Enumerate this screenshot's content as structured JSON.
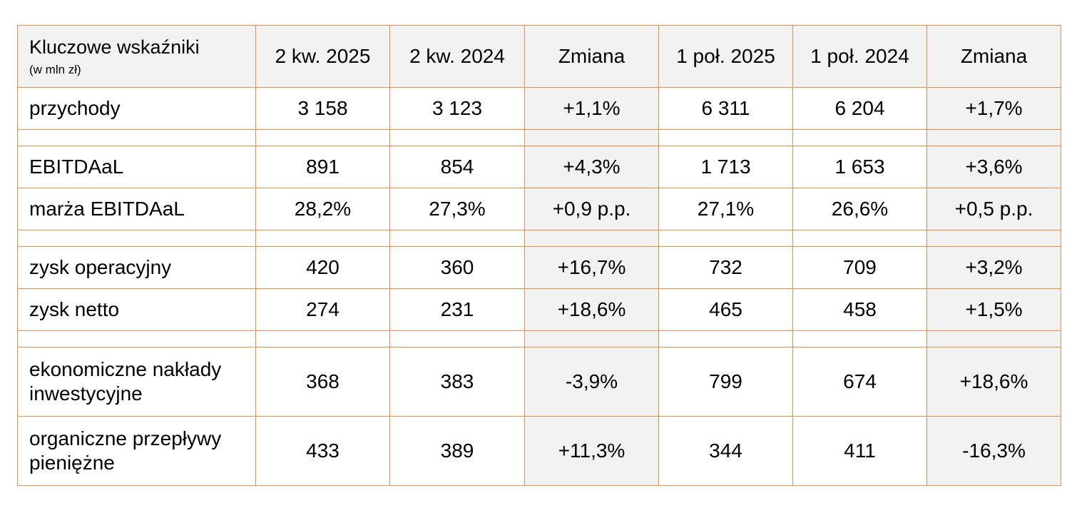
{
  "table": {
    "header": {
      "title": "Kluczowe wskaźniki",
      "unit": "(w mln zł)",
      "columns": [
        "2 kw. 2025",
        "2 kw. 2024",
        "Zmiana",
        "1 poł. 2025",
        "1 poł. 2024",
        "Zmiana"
      ]
    },
    "rows": [
      {
        "label": "przychody",
        "values": [
          "3 158",
          "3 123",
          "+1,1%",
          "6 311",
          "6 204",
          "+1,7%"
        ]
      },
      {
        "label": "EBITDAaL",
        "values": [
          "891",
          "854",
          "+4,3%",
          "1 713",
          "1 653",
          "+3,6%"
        ]
      },
      {
        "label": "marża EBITDAaL",
        "values": [
          "28,2%",
          "27,3%",
          "+0,9 p.p.",
          "27,1%",
          "26,6%",
          "+0,5 p.p."
        ]
      },
      {
        "label": "zysk operacyjny",
        "values": [
          "420",
          "360",
          "+16,7%",
          "732",
          "709",
          "+3,2%"
        ]
      },
      {
        "label": "zysk netto",
        "values": [
          "274",
          "231",
          "+18,6%",
          "465",
          "458",
          "+1,5%"
        ]
      },
      {
        "label": "ekonomiczne nakłady inwestycyjne",
        "values": [
          "368",
          "383",
          "-3,9%",
          "799",
          "674",
          "+18,6%"
        ]
      },
      {
        "label": "organiczne przepływy pieniężne",
        "values": [
          "433",
          "389",
          "+11,3%",
          "344",
          "411",
          "-16,3%"
        ]
      }
    ]
  },
  "colors": {
    "border": "#f08a4b",
    "shade": "#f2f2f2"
  }
}
